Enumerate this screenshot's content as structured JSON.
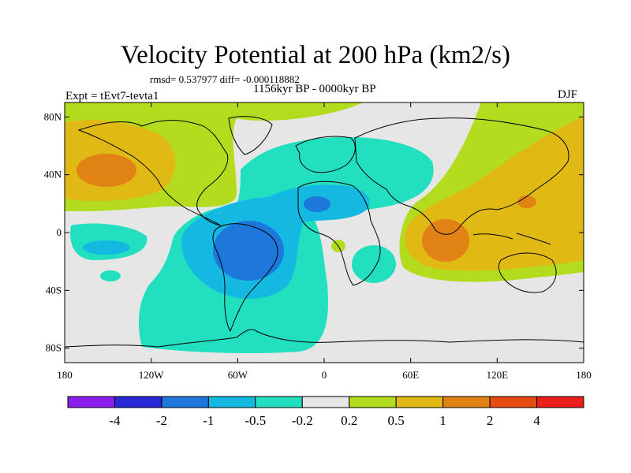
{
  "title": "Velocity Potential at 200 hPa (km2/s)",
  "stats": "rmsd= 0.537977 diff= -0.000118882",
  "period": "1156kyr BP - 0000kyr BP",
  "experiment": "Expt = tEvt7-tevta1",
  "season": "DJF",
  "map": {
    "lon_range": [
      -180,
      180
    ],
    "lat_range": [
      -90,
      90
    ],
    "x_ticks": [
      {
        "lon": -180,
        "label": "180"
      },
      {
        "lon": -120,
        "label": "120W"
      },
      {
        "lon": -60,
        "label": "60W"
      },
      {
        "lon": 0,
        "label": "0"
      },
      {
        "lon": 60,
        "label": "60E"
      },
      {
        "lon": 120,
        "label": "120E"
      },
      {
        "lon": 180,
        "label": "180"
      }
    ],
    "y_ticks": [
      {
        "lat": 80,
        "label": "80N"
      },
      {
        "lat": 40,
        "label": "40N"
      },
      {
        "lat": 0,
        "label": "0"
      },
      {
        "lat": -40,
        "label": "40S"
      },
      {
        "lat": -80,
        "label": "80S"
      }
    ]
  },
  "colorbar": {
    "colors": [
      "#8c1eeb",
      "#2828d7",
      "#1e78dc",
      "#14b9e1",
      "#22dfc0",
      "#e6e6e6",
      "#b4dc1e",
      "#e1b914",
      "#e18214",
      "#e64b14",
      "#eb1e1e"
    ],
    "labels": [
      "-4",
      "-2",
      "-1",
      "-0.5",
      "-0.2",
      "0.2",
      "0.5",
      "1",
      "2",
      "4"
    ]
  }
}
